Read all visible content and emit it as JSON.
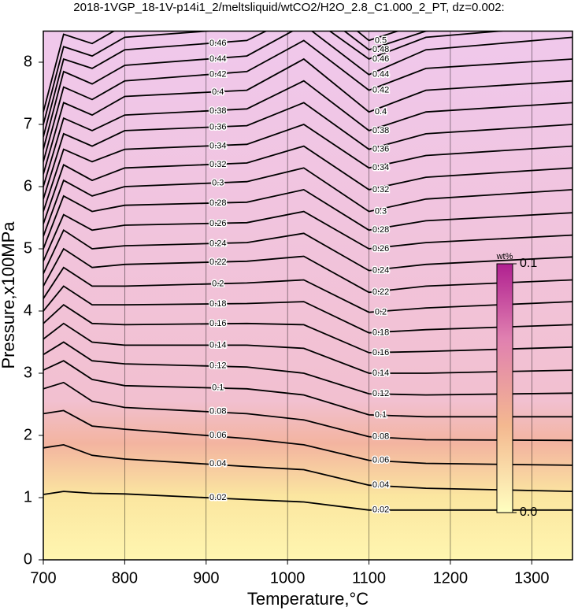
{
  "chart_data": {
    "type": "contour",
    "title": "2018-1VGP_18-1V-p14i1_2/meltsliquid/wtCO2/H2O_2.8_C1.000_2_PT, dz=0.002:",
    "xlabel": "Temperature,°C",
    "ylabel": "Pressure,x100MPa",
    "xlim": [
      700,
      1350
    ],
    "ylim": [
      0,
      8.5
    ],
    "xticks": [
      700,
      800,
      900,
      1000,
      1100,
      1200,
      1300
    ],
    "yticks": [
      0,
      1,
      2,
      3,
      4,
      5,
      6,
      7,
      8
    ],
    "grid": true,
    "x": [
      700,
      725,
      760,
      800,
      950,
      1020,
      1100,
      1170,
      1350
    ],
    "contours": [
      {
        "level": 0.02,
        "values": [
          1.05,
          1.1,
          1.07,
          1.06,
          0.97,
          0.93,
          0.8,
          0.8,
          0.8
        ]
      },
      {
        "level": 0.04,
        "values": [
          1.8,
          1.85,
          1.68,
          1.62,
          1.5,
          1.45,
          1.2,
          1.15,
          1.1
        ]
      },
      {
        "level": 0.06,
        "values": [
          2.35,
          2.4,
          2.15,
          2.1,
          1.95,
          1.85,
          1.6,
          1.55,
          1.52
        ]
      },
      {
        "level": 0.08,
        "values": [
          2.75,
          2.85,
          2.55,
          2.45,
          2.35,
          2.25,
          1.98,
          1.93,
          1.92
        ]
      },
      {
        "level": 0.1,
        "values": [
          3.05,
          3.2,
          2.9,
          2.8,
          2.75,
          2.65,
          2.33,
          2.3,
          2.3
        ]
      },
      {
        "level": 0.12,
        "values": [
          3.3,
          3.5,
          3.2,
          3.15,
          3.1,
          3.0,
          2.67,
          2.65,
          2.68
        ]
      },
      {
        "level": 0.14,
        "values": [
          3.55,
          3.8,
          3.5,
          3.45,
          3.45,
          3.4,
          3.0,
          3.0,
          3.05
        ]
      },
      {
        "level": 0.16,
        "values": [
          3.8,
          4.1,
          3.8,
          3.78,
          3.8,
          3.78,
          3.33,
          3.35,
          3.42
        ]
      },
      {
        "level": 0.18,
        "values": [
          4.0,
          4.4,
          4.1,
          4.1,
          4.12,
          4.15,
          3.65,
          3.7,
          3.78
        ]
      },
      {
        "level": 0.2,
        "values": [
          4.2,
          4.7,
          4.4,
          4.4,
          4.45,
          4.5,
          3.98,
          4.05,
          4.15
        ]
      },
      {
        "level": 0.22,
        "values": [
          4.4,
          5.0,
          4.7,
          4.75,
          4.8,
          4.88,
          4.3,
          4.4,
          4.5
        ]
      },
      {
        "level": 0.24,
        "values": [
          4.6,
          5.3,
          5.0,
          5.05,
          5.1,
          5.25,
          4.65,
          4.75,
          4.87
        ]
      },
      {
        "level": 0.26,
        "values": [
          4.8,
          5.55,
          5.3,
          5.38,
          5.42,
          5.6,
          5.0,
          5.1,
          5.22
        ]
      },
      {
        "level": 0.28,
        "values": [
          5.0,
          5.85,
          5.6,
          5.7,
          5.75,
          5.95,
          5.3,
          5.45,
          5.58
        ]
      },
      {
        "level": 0.3,
        "values": [
          5.2,
          6.1,
          5.85,
          6.0,
          6.08,
          6.3,
          5.6,
          5.8,
          5.95
        ]
      },
      {
        "level": 0.32,
        "values": [
          5.4,
          6.35,
          6.1,
          6.3,
          6.38,
          6.65,
          5.95,
          6.15,
          6.3
        ]
      },
      {
        "level": 0.34,
        "values": [
          5.6,
          6.6,
          6.4,
          6.6,
          6.68,
          7.0,
          6.3,
          6.5,
          6.65
        ]
      },
      {
        "level": 0.36,
        "values": [
          5.8,
          6.85,
          6.65,
          6.9,
          6.98,
          7.35,
          6.6,
          6.85,
          7.0
        ]
      },
      {
        "level": 0.38,
        "values": [
          6.0,
          7.1,
          6.9,
          7.15,
          7.25,
          7.7,
          6.9,
          7.2,
          7.35
        ]
      },
      {
        "level": 0.4,
        "values": [
          6.2,
          7.35,
          7.15,
          7.45,
          7.55,
          8.05,
          7.2,
          7.55,
          7.7
        ]
      },
      {
        "level": 0.42,
        "values": [
          6.4,
          7.6,
          7.4,
          7.7,
          7.85,
          8.35,
          7.55,
          7.9,
          8.05
        ]
      },
      {
        "level": 0.44,
        "values": [
          6.6,
          7.85,
          7.65,
          7.95,
          8.1,
          8.6,
          7.8,
          8.2,
          8.4
        ]
      },
      {
        "level": 0.46,
        "values": [
          6.8,
          8.05,
          7.9,
          8.2,
          8.35,
          8.8,
          8.05,
          8.4,
          8.6
        ]
      },
      {
        "level": 0.48,
        "values": [
          7.0,
          8.25,
          8.1,
          8.4,
          8.55,
          9.0,
          8.2,
          8.5,
          8.75
        ]
      },
      {
        "level": 0.5,
        "values": [
          7.2,
          8.45,
          8.3,
          8.6,
          8.75,
          9.2,
          8.35,
          8.65,
          8.9
        ]
      }
    ],
    "colorbar": {
      "label": "wt%",
      "lim": [
        0,
        0.1
      ],
      "ticks": [
        0.1,
        {
          "value": 0,
          "label": "0.0"
        }
      ]
    }
  }
}
